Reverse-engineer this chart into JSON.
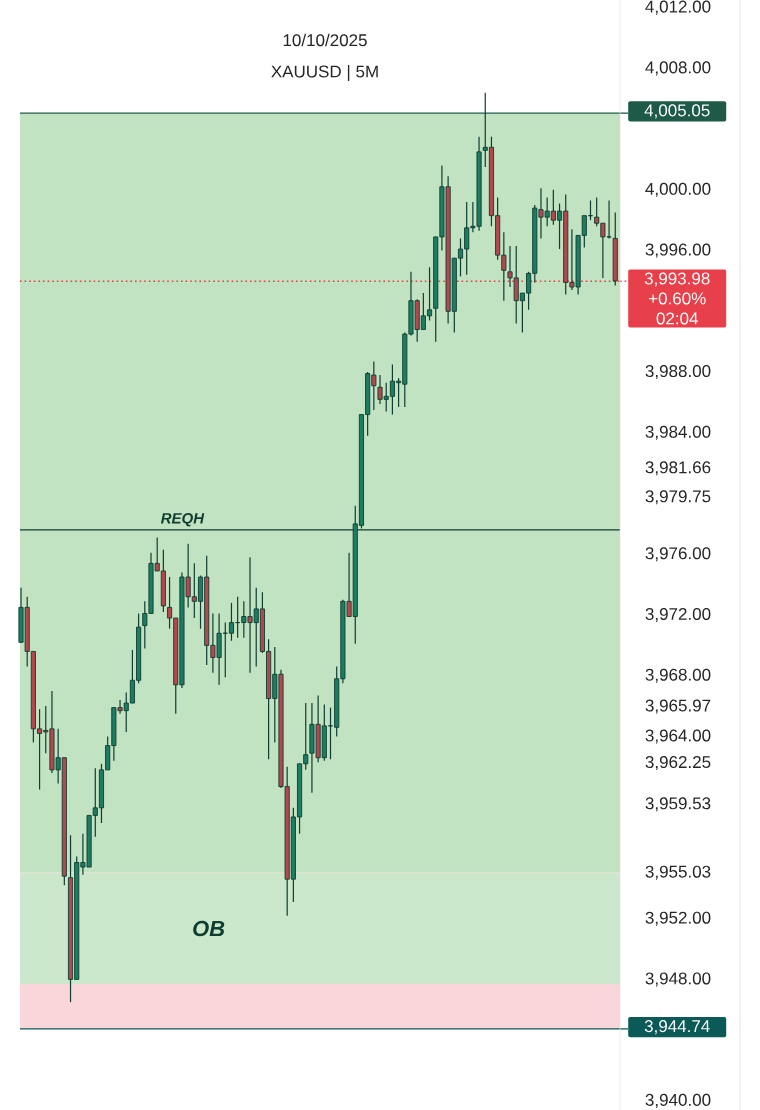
{
  "chart_data": {
    "type": "candlestick",
    "title": "10/10/2025",
    "subtitle": "XAUUSD | 5M",
    "categories": [
      null,
      null,
      null,
      null,
      null,
      null,
      null,
      null,
      null,
      null,
      null,
      null,
      null,
      null,
      null,
      null,
      null,
      null,
      null,
      null,
      null,
      null,
      null,
      null,
      null,
      null,
      null,
      null,
      null,
      null,
      null,
      null,
      null,
      null,
      null,
      null,
      null,
      null,
      null,
      null,
      null,
      null,
      null,
      null,
      null,
      null,
      null,
      null,
      null,
      null,
      null,
      null,
      null,
      null,
      null,
      null,
      null,
      null,
      null,
      null,
      null,
      null,
      null,
      null,
      null,
      null,
      null,
      null,
      null,
      null,
      null,
      null,
      null,
      null,
      null,
      null,
      null,
      null,
      null,
      null,
      null,
      null,
      null,
      null,
      null,
      null,
      null,
      null,
      null,
      null,
      null,
      null,
      null,
      null,
      null,
      null,
      null
    ],
    "ohlc": [
      [
        3970.2,
        3973.8,
        3970.2,
        3972.5
      ],
      [
        3972.5,
        3973.2,
        3968.6,
        3969.6
      ],
      [
        3969.6,
        3969.6,
        3963.6,
        3964.5
      ],
      [
        3964.5,
        3965.8,
        3960.5,
        3964.2
      ],
      [
        3964.4,
        3966.0,
        3962.9,
        3964.3
      ],
      [
        3964.5,
        3967.0,
        3961.6,
        3961.8
      ],
      [
        3961.8,
        3964.5,
        3960.9,
        3962.6
      ],
      [
        3962.6,
        3962.6,
        3954.2,
        3954.8
      ],
      [
        3954.7,
        3957.5,
        3946.5,
        3948.0
      ],
      [
        3948.0,
        3956.1,
        3948.0,
        3955.7
      ],
      [
        3955.4,
        3957.6,
        3954.9,
        3955.7
      ],
      [
        3955.4,
        3958.8,
        3955.4,
        3958.8
      ],
      [
        3958.8,
        3961.9,
        3957.4,
        3959.3
      ],
      [
        3959.3,
        3962.2,
        3958.3,
        3961.8
      ],
      [
        3961.8,
        3964.0,
        3961.8,
        3963.4
      ],
      [
        3963.4,
        3965.9,
        3962.4,
        3965.9
      ],
      [
        3965.9,
        3966.4,
        3965.5,
        3965.7
      ],
      [
        3965.7,
        3966.9,
        3964.3,
        3966.2
      ],
      [
        3966.2,
        3969.7,
        3966.2,
        3967.7
      ],
      [
        3967.7,
        3972.1,
        3967.5,
        3971.2
      ],
      [
        3971.3,
        3972.9,
        3969.8,
        3972.1
      ],
      [
        3972.1,
        3976.1,
        3972.1,
        3975.4
      ],
      [
        3975.4,
        3977.1,
        3974.9,
        3974.9
      ],
      [
        3974.9,
        3976.3,
        3972.2,
        3972.6
      ],
      [
        3972.5,
        3974.5,
        3971.1,
        3971.8
      ],
      [
        3971.8,
        3971.8,
        3965.5,
        3967.4
      ],
      [
        3967.4,
        3974.8,
        3967.2,
        3974.5
      ],
      [
        3974.5,
        3976.7,
        3972.5,
        3973.2
      ],
      [
        3973.2,
        3975.4,
        3971.8,
        3972.9
      ],
      [
        3972.9,
        3974.6,
        3971.1,
        3974.5
      ],
      [
        3974.5,
        3975.9,
        3968.7,
        3970.0
      ],
      [
        3970.0,
        3972.1,
        3968.2,
        3969.2
      ],
      [
        3969.2,
        3972.1,
        3967.4,
        3970.8
      ],
      [
        3970.8,
        3971.5,
        3967.9,
        3970.8
      ],
      [
        3970.8,
        3972.8,
        3970.3,
        3971.5
      ],
      [
        3971.5,
        3973.2,
        3970.5,
        3971.5
      ],
      [
        3971.5,
        3972.9,
        3970.5,
        3971.9
      ],
      [
        3971.9,
        3975.8,
        3968.2,
        3971.5
      ],
      [
        3971.5,
        3973.8,
        3968.6,
        3972.4
      ],
      [
        3972.4,
        3973.5,
        3969.5,
        3969.6
      ],
      [
        3969.6,
        3970.4,
        3962.5,
        3966.5
      ],
      [
        3966.5,
        3969.9,
        3963.6,
        3968.1
      ],
      [
        3968.1,
        3968.4,
        3960.6,
        3960.7
      ],
      [
        3960.7,
        3962.0,
        3952.2,
        3954.6
      ],
      [
        3954.6,
        3959.3,
        3953.1,
        3958.7
      ],
      [
        3958.7,
        3962.2,
        3957.6,
        3962.2
      ],
      [
        3962.2,
        3966.2,
        3961.8,
        3962.8
      ],
      [
        3962.9,
        3966.2,
        3960.3,
        3964.8
      ],
      [
        3964.8,
        3966.7,
        3962.3,
        3962.6
      ],
      [
        3962.6,
        3966.1,
        3962.4,
        3964.7
      ],
      [
        3964.7,
        3965.9,
        3962.5,
        3964.7
      ],
      [
        3964.6,
        3968.6,
        3964.0,
        3967.8
      ],
      [
        3967.8,
        3973.0,
        3967.5,
        3972.9
      ],
      [
        3972.9,
        3976.1,
        3971.9,
        3971.9
      ],
      [
        3971.9,
        3979.2,
        3970.1,
        3978.0
      ],
      [
        3977.9,
        3985.2,
        3977.7,
        3985.2
      ],
      [
        3985.2,
        3988.0,
        3983.8,
        3987.9
      ],
      [
        3987.8,
        3988.7,
        3985.5,
        3987.1
      ],
      [
        3987.0,
        3987.8,
        3985.9,
        3986.2
      ],
      [
        3986.2,
        3987.3,
        3985.4,
        3986.4
      ],
      [
        3986.4,
        3988.5,
        3985.2,
        3987.4
      ],
      [
        3987.3,
        3987.6,
        3985.7,
        3987.4
      ],
      [
        3987.2,
        3990.6,
        3985.7,
        3990.5
      ],
      [
        3990.5,
        3994.6,
        3990.4,
        3992.7
      ],
      [
        3992.7,
        3992.8,
        3990.0,
        3990.8
      ],
      [
        3990.8,
        3993.2,
        3990.8,
        3991.7
      ],
      [
        3991.7,
        3994.9,
        3991.4,
        3992.1
      ],
      [
        3992.2,
        3996.9,
        3990.0,
        3996.9
      ],
      [
        3996.9,
        4001.6,
        3996.0,
        4000.2
      ],
      [
        4000.2,
        4000.9,
        3991.2,
        3992.0
      ],
      [
        3992.0,
        3995.5,
        3990.6,
        3995.5
      ],
      [
        3995.5,
        3996.8,
        3994.3,
        3996.1
      ],
      [
        3996.1,
        3999.2,
        3994.4,
        3997.5
      ],
      [
        3997.5,
        3999.2,
        3997.2,
        3997.6
      ],
      [
        3997.6,
        4003.5,
        3997.3,
        4002.5
      ],
      [
        4002.6,
        4006.4,
        4001.5,
        4002.8
      ],
      [
        4002.8,
        4003.5,
        3997.6,
        3998.3
      ],
      [
        3998.3,
        3999.5,
        3995.4,
        3995.7
      ],
      [
        3995.7,
        3997.2,
        3992.7,
        3994.7
      ],
      [
        3994.6,
        3996.3,
        3993.6,
        3994.2
      ],
      [
        3994.2,
        3996.3,
        3991.2,
        3992.7
      ],
      [
        3992.7,
        3993.2,
        3990.6,
        3993.2
      ],
      [
        3993.2,
        3994.6,
        3992.1,
        3994.5
      ],
      [
        3994.5,
        3999.0,
        3993.9,
        3998.8
      ],
      [
        3998.7,
        4000.1,
        3996.8,
        3998.2
      ],
      [
        3998.2,
        3999.5,
        3997.6,
        3998.6
      ],
      [
        3998.6,
        4000.0,
        3997.7,
        3998.0
      ],
      [
        3998.0,
        3999.1,
        3996.1,
        3998.6
      ],
      [
        3998.6,
        3999.7,
        3993.1,
        3993.9
      ],
      [
        3993.9,
        3997.4,
        3993.4,
        3993.6
      ],
      [
        3993.6,
        3997.0,
        3993.1,
        3997.0
      ],
      [
        3997.0,
        3998.3,
        3996.2,
        3998.3
      ],
      [
        3998.3,
        3999.3,
        3998.0,
        3998.3
      ],
      [
        3998.2,
        3999.5,
        3997.6,
        3997.8
      ],
      [
        3997.8,
        3997.8,
        3994.2,
        3996.9
      ],
      [
        3996.9,
        3999.3,
        3996.8,
        3996.9
      ],
      [
        3996.8,
        3998.5,
        3993.7,
        3994.0
      ]
    ],
    "ylim": [
      3939.4,
      4012.5
    ],
    "yticks": [
      {
        "value": 4012,
        "label": "4,012.00"
      },
      {
        "value": 4008,
        "label": "4,008.00"
      },
      {
        "value": 4000,
        "label": "4,000.00"
      },
      {
        "value": 3996,
        "label": "3,996.00"
      },
      {
        "value": 3988,
        "label": "3,988.00"
      },
      {
        "value": 3984,
        "label": "3,984.00"
      },
      {
        "value": 3981.66,
        "label": "3,981.66"
      },
      {
        "value": 3979.75,
        "label": "3,979.75"
      },
      {
        "value": 3976,
        "label": "3,976.00"
      },
      {
        "value": 3972,
        "label": "3,972.00"
      },
      {
        "value": 3968,
        "label": "3,968.00"
      },
      {
        "value": 3965.97,
        "label": "3,965.97"
      },
      {
        "value": 3964,
        "label": "3,964.00"
      },
      {
        "value": 3962.25,
        "label": "3,962.25"
      },
      {
        "value": 3959.53,
        "label": "3,959.53"
      },
      {
        "value": 3955.03,
        "label": "3,955.03"
      },
      {
        "value": 3952,
        "label": "3,952.00"
      },
      {
        "value": 3948,
        "label": "3,948.00"
      },
      {
        "value": 3940,
        "label": "3,940.00"
      }
    ],
    "tick_labels": "y",
    "bands": [
      {
        "axis": "y",
        "from": 3955.03,
        "to": 4005.05,
        "label": null,
        "color": "#c2e3c2"
      },
      {
        "axis": "y",
        "from": 3944.74,
        "to": 3955.03,
        "label": null,
        "color": "#f9d6da"
      },
      {
        "axis": "y",
        "from": 3947.7,
        "to": 3955.0,
        "label": "OB",
        "color": "#cbe8cc"
      }
    ],
    "ref_lines": [
      {
        "axis": "y",
        "value": 4005.05,
        "label": "4,005.05",
        "color": "#1e5a48",
        "line_style": "solid"
      },
      {
        "axis": "y",
        "value": 3993.98,
        "label": "3,993.98 +0.60% 02:04",
        "color": "#e8404a",
        "line_style": "dotted"
      },
      {
        "axis": "y",
        "value": 3944.74,
        "label": "3,944.74",
        "color": "#0b5a57",
        "line_style": "solid"
      },
      {
        "axis": "y",
        "value": 3977.6,
        "label": "REQH",
        "line_style": "solid"
      }
    ]
  }
}
